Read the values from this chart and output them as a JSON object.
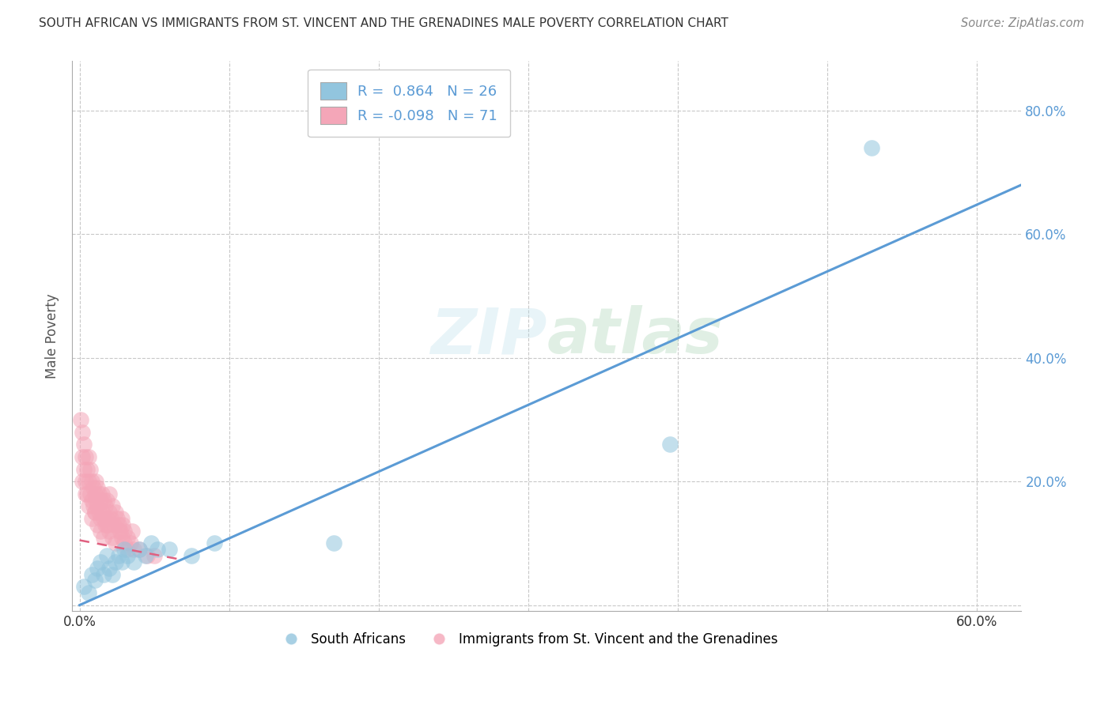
{
  "title": "SOUTH AFRICAN VS IMMIGRANTS FROM ST. VINCENT AND THE GRENADINES MALE POVERTY CORRELATION CHART",
  "source": "Source: ZipAtlas.com",
  "ylabel": "Male Poverty",
  "xlim": [
    -0.005,
    0.63
  ],
  "ylim": [
    -0.01,
    0.88
  ],
  "xticks": [
    0.0,
    0.1,
    0.2,
    0.3,
    0.4,
    0.5,
    0.6
  ],
  "xtick_labels": [
    "0.0%",
    "",
    "",
    "",
    "",
    "",
    "60.0%"
  ],
  "yticks": [
    0.0,
    0.2,
    0.4,
    0.6,
    0.8
  ],
  "ytick_labels": [
    "",
    "20.0%",
    "40.0%",
    "60.0%",
    "80.0%"
  ],
  "blue_R": "0.864",
  "blue_N": "26",
  "pink_R": "-0.098",
  "pink_N": "71",
  "blue_color": "#92c5de",
  "pink_color": "#f4a6b8",
  "blue_line_color": "#5b9bd5",
  "pink_line_color": "#e06080",
  "watermark": "ZIPatlas",
  "blue_scatter_x": [
    0.003,
    0.006,
    0.008,
    0.01,
    0.012,
    0.014,
    0.016,
    0.018,
    0.02,
    0.022,
    0.024,
    0.026,
    0.028,
    0.03,
    0.032,
    0.036,
    0.04,
    0.044,
    0.048,
    0.052,
    0.06,
    0.075,
    0.09,
    0.17,
    0.395,
    0.53
  ],
  "blue_scatter_y": [
    0.03,
    0.02,
    0.05,
    0.04,
    0.06,
    0.07,
    0.05,
    0.08,
    0.06,
    0.05,
    0.07,
    0.08,
    0.07,
    0.09,
    0.08,
    0.07,
    0.09,
    0.08,
    0.1,
    0.09,
    0.09,
    0.08,
    0.1,
    0.1,
    0.26,
    0.74
  ],
  "pink_scatter_x": [
    0.001,
    0.002,
    0.002,
    0.003,
    0.003,
    0.004,
    0.004,
    0.005,
    0.005,
    0.006,
    0.006,
    0.007,
    0.007,
    0.008,
    0.008,
    0.009,
    0.009,
    0.01,
    0.01,
    0.011,
    0.011,
    0.012,
    0.012,
    0.013,
    0.013,
    0.014,
    0.014,
    0.015,
    0.015,
    0.016,
    0.016,
    0.017,
    0.017,
    0.018,
    0.018,
    0.019,
    0.02,
    0.02,
    0.021,
    0.022,
    0.023,
    0.024,
    0.025,
    0.026,
    0.027,
    0.028,
    0.029,
    0.03,
    0.032,
    0.035,
    0.002,
    0.004,
    0.006,
    0.008,
    0.01,
    0.012,
    0.014,
    0.016,
    0.018,
    0.02,
    0.022,
    0.024,
    0.026,
    0.028,
    0.03,
    0.032,
    0.034,
    0.036,
    0.04,
    0.045,
    0.05
  ],
  "pink_scatter_y": [
    0.3,
    0.24,
    0.28,
    0.22,
    0.26,
    0.2,
    0.24,
    0.18,
    0.22,
    0.2,
    0.24,
    0.18,
    0.22,
    0.17,
    0.2,
    0.16,
    0.19,
    0.15,
    0.18,
    0.17,
    0.2,
    0.16,
    0.19,
    0.15,
    0.18,
    0.14,
    0.17,
    0.15,
    0.18,
    0.14,
    0.17,
    0.13,
    0.16,
    0.14,
    0.17,
    0.13,
    0.15,
    0.18,
    0.14,
    0.16,
    0.13,
    0.15,
    0.14,
    0.13,
    0.12,
    0.14,
    0.13,
    0.12,
    0.11,
    0.12,
    0.2,
    0.18,
    0.16,
    0.14,
    0.15,
    0.13,
    0.12,
    0.11,
    0.13,
    0.12,
    0.11,
    0.1,
    0.12,
    0.11,
    0.1,
    0.09,
    0.1,
    0.09,
    0.09,
    0.08,
    0.08
  ],
  "blue_line_x0": 0.0,
  "blue_line_y0": 0.0,
  "blue_line_x1": 0.63,
  "blue_line_y1": 0.68,
  "pink_line_x0": 0.0,
  "pink_line_y0": 0.105,
  "pink_line_x1": 0.065,
  "pink_line_y1": 0.075,
  "grid_color": "#c8c8c8",
  "background_color": "#ffffff",
  "title_fontsize": 11,
  "tick_fontsize": 12,
  "ylabel_fontsize": 12
}
